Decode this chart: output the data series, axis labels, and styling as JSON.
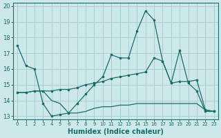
{
  "xlabel": "Humidex (Indice chaleur)",
  "bg_color": "#cce8e8",
  "grid_color": "#aacfcf",
  "line_color": "#1a6b6b",
  "xlim": [
    -0.5,
    23.5
  ],
  "ylim": [
    12.8,
    20.2
  ],
  "yticks": [
    13,
    14,
    15,
    16,
    17,
    18,
    19,
    20
  ],
  "xticks": [
    0,
    1,
    2,
    3,
    4,
    5,
    6,
    7,
    8,
    9,
    10,
    11,
    12,
    13,
    14,
    15,
    16,
    17,
    18,
    19,
    20,
    21,
    22,
    23
  ],
  "series1_x": [
    0,
    1,
    2,
    3,
    4,
    5,
    6,
    7,
    8,
    9,
    10,
    11,
    12,
    13,
    14,
    15,
    16,
    17,
    18,
    19,
    20,
    21,
    22,
    23
  ],
  "series1_y": [
    17.5,
    16.2,
    16.0,
    13.8,
    13.0,
    13.1,
    13.2,
    13.8,
    14.4,
    15.0,
    15.5,
    16.9,
    16.7,
    16.7,
    18.4,
    19.7,
    19.1,
    16.5,
    15.1,
    17.2,
    15.1,
    14.6,
    13.3,
    13.3
  ],
  "series2_x": [
    0,
    1,
    2,
    3,
    4,
    5,
    6,
    7,
    8,
    9,
    10,
    11,
    12,
    13,
    14,
    15,
    16,
    17,
    18,
    19,
    20,
    21,
    22,
    23
  ],
  "series2_y": [
    14.5,
    14.5,
    14.6,
    14.6,
    14.6,
    14.7,
    14.7,
    14.8,
    15.0,
    15.1,
    15.2,
    15.4,
    15.5,
    15.6,
    15.7,
    15.8,
    16.7,
    16.5,
    15.1,
    15.2,
    15.2,
    15.3,
    13.4,
    13.3
  ],
  "series3_x": [
    0,
    1,
    2,
    3,
    4,
    5,
    6,
    7,
    8,
    9,
    10,
    11,
    12,
    13,
    14,
    15,
    16,
    17,
    18,
    19,
    20,
    21,
    22,
    23
  ],
  "series3_y": [
    14.5,
    14.5,
    14.6,
    14.6,
    14.0,
    13.8,
    13.2,
    13.2,
    13.3,
    13.5,
    13.6,
    13.6,
    13.7,
    13.7,
    13.8,
    13.8,
    13.8,
    13.8,
    13.8,
    13.8,
    13.8,
    13.8,
    13.4,
    13.3
  ]
}
